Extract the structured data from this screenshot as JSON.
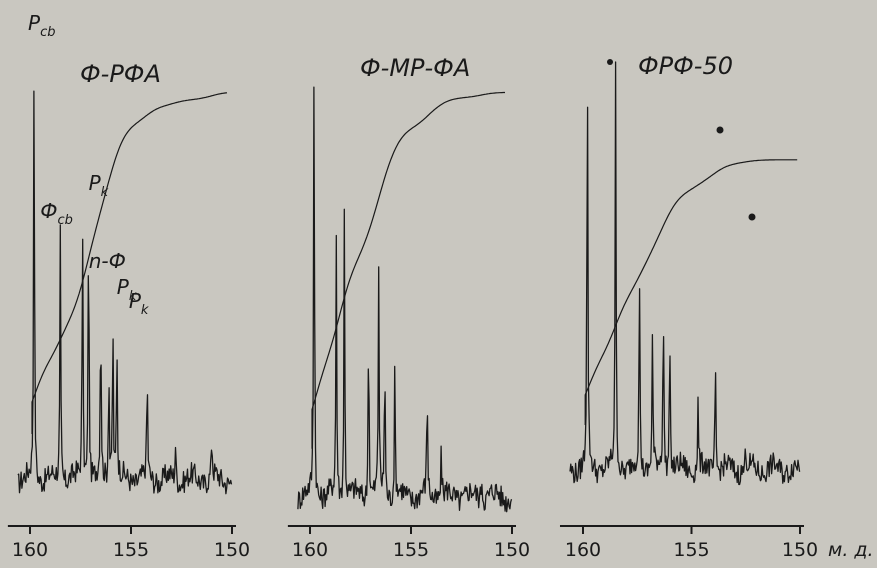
{
  "chart_data": [
    {
      "type": "line",
      "title": "Ф-РФА",
      "xlabel": "",
      "ylabel": "",
      "xlim": [
        160.6,
        150
      ],
      "ticks": [
        {
          "value": 160,
          "label": "160"
        },
        {
          "value": 155,
          "label": "155"
        },
        {
          "value": 150,
          "label": "150"
        }
      ],
      "peaks": [
        {
          "x": 159.8,
          "h": 0.97
        },
        {
          "x": 158.5,
          "h": 0.55
        },
        {
          "x": 157.4,
          "h": 0.6
        },
        {
          "x": 157.1,
          "h": 0.64
        },
        {
          "x": 156.5,
          "h": 0.4
        },
        {
          "x": 156.1,
          "h": 0.28
        },
        {
          "x": 155.9,
          "h": 0.38
        },
        {
          "x": 155.7,
          "h": 0.32
        },
        {
          "x": 154.2,
          "h": 0.24
        },
        {
          "x": 152.8,
          "h": 0.08
        },
        {
          "x": 151.0,
          "h": 0.1
        }
      ],
      "integral": {
        "start": 159.9,
        "end": 150.2,
        "y0": 0.12,
        "y1": 0.88
      },
      "annotations": [
        {
          "text": "P",
          "sub": "cb",
          "x": 159.8
        },
        {
          "text": "Ф",
          "sub": "cb",
          "x": 158.5
        },
        {
          "text": "P",
          "sub": "k",
          "x": 157.1
        },
        {
          "text": "n-Ф",
          "sub": "",
          "x": 156.5
        },
        {
          "text": "P",
          "sub": "k",
          "x": 156.0
        },
        {
          "text": "P",
          "sub": "k",
          "x": 155.7
        }
      ]
    },
    {
      "type": "line",
      "title": "Ф-МР-ФА",
      "xlabel": "",
      "ylabel": "",
      "xlim": [
        160.6,
        150
      ],
      "ticks": [
        {
          "value": 160,
          "label": "160"
        },
        {
          "value": 155,
          "label": "155"
        },
        {
          "value": 150,
          "label": "150"
        }
      ],
      "peaks": [
        {
          "x": 159.8,
          "h": 0.98
        },
        {
          "x": 158.7,
          "h": 0.55
        },
        {
          "x": 158.3,
          "h": 0.62
        },
        {
          "x": 157.1,
          "h": 0.41
        },
        {
          "x": 156.6,
          "h": 0.48
        },
        {
          "x": 156.3,
          "h": 0.32
        },
        {
          "x": 155.8,
          "h": 0.28
        },
        {
          "x": 154.2,
          "h": 0.24
        },
        {
          "x": 153.5,
          "h": 0.1
        },
        {
          "x": 151.5,
          "h": 0.06
        }
      ],
      "integral": {
        "start": 159.9,
        "end": 150.3,
        "y0": 0.12,
        "y1": 0.88
      }
    },
    {
      "type": "line",
      "title": "ФРФ-50",
      "xlabel": "м. д.",
      "ylabel": "",
      "xlim": [
        160.6,
        150
      ],
      "ticks": [
        {
          "value": 160,
          "label": "160"
        },
        {
          "value": 155,
          "label": "155"
        },
        {
          "value": 150,
          "label": "150"
        }
      ],
      "peaks": [
        {
          "x": 159.8,
          "h": 0.95
        },
        {
          "x": 158.5,
          "h": 0.9
        },
        {
          "x": 157.4,
          "h": 0.45
        },
        {
          "x": 156.8,
          "h": 0.3
        },
        {
          "x": 156.3,
          "h": 0.38
        },
        {
          "x": 156.0,
          "h": 0.32
        },
        {
          "x": 154.7,
          "h": 0.15
        },
        {
          "x": 153.9,
          "h": 0.24
        },
        {
          "x": 152.5,
          "h": 0.05
        }
      ],
      "integral": {
        "start": 159.9,
        "end": 150.1,
        "y0": 0.12,
        "y1": 0.72
      }
    }
  ]
}
